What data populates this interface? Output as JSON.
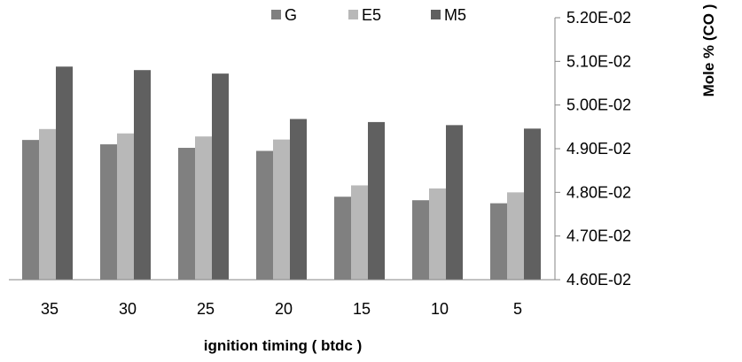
{
  "chart_data": {
    "type": "bar",
    "title": "",
    "xlabel": "ignition timing ( btdc )",
    "ylabel": "Mole % (CO )",
    "categories": [
      "35",
      "30",
      "25",
      "20",
      "15",
      "10",
      "5"
    ],
    "ylim": [
      0.046,
      0.052
    ],
    "yticks": [
      0.046,
      0.047,
      0.048,
      0.049,
      0.05,
      0.051,
      0.052
    ],
    "ytick_labels": [
      "4.60E-02",
      "4.70E-02",
      "4.80E-02",
      "4.90E-02",
      "5.00E-02",
      "5.10E-02",
      "5.20E-02"
    ],
    "y_axis_side": "right",
    "grid": false,
    "legend_position": "top",
    "series": [
      {
        "name": "G",
        "color": "#808080",
        "values": [
          0.0492,
          0.0491,
          0.04902,
          0.04895,
          0.0479,
          0.04782,
          0.04775
        ]
      },
      {
        "name": "E5",
        "color": "#b8b8b8",
        "values": [
          0.04945,
          0.04935,
          0.04928,
          0.04921,
          0.04816,
          0.04809,
          0.048
        ]
      },
      {
        "name": "M5",
        "color": "#606060",
        "values": [
          0.05088,
          0.0508,
          0.05072,
          0.04968,
          0.04961,
          0.04954,
          0.04946
        ]
      }
    ]
  }
}
